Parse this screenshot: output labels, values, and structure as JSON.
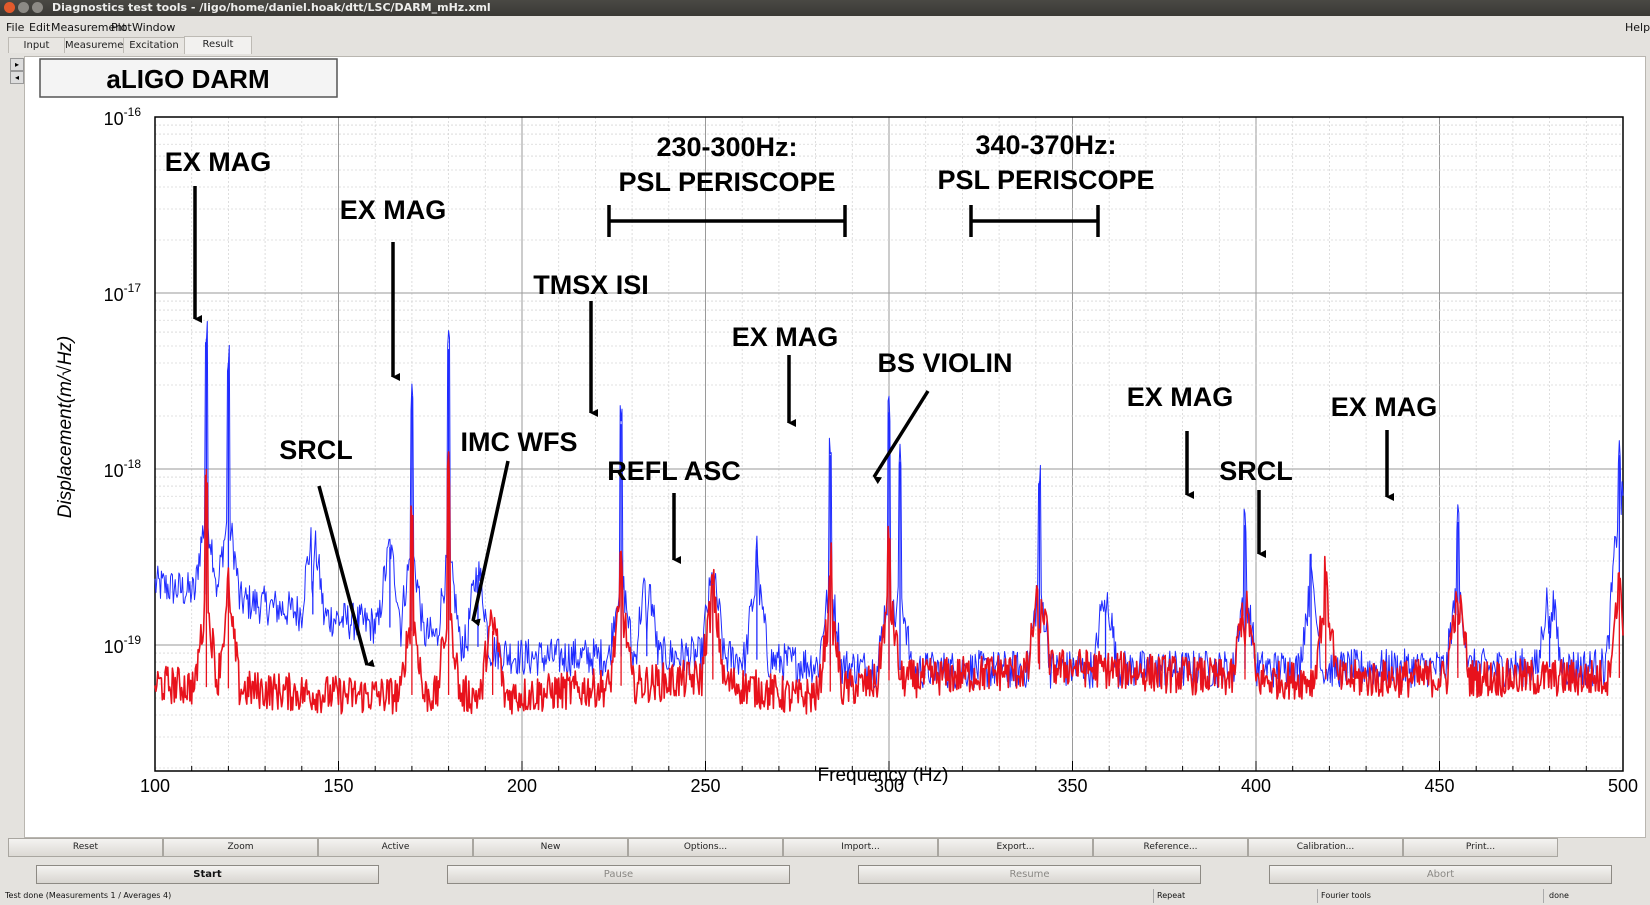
{
  "window": {
    "title": "Diagnostics test tools - /ligo/home/daniel.hoak/dtt/LSC/DARM_mHz.xml"
  },
  "menu": [
    "File",
    "Edit",
    "Measurement",
    "Plot",
    "Window"
  ],
  "help_label": "Help",
  "tabs": [
    "Input",
    "Measurement",
    "Excitation",
    "Result"
  ],
  "active_tab": "Result",
  "plot": {
    "title_box": "aLIGO DARM",
    "xlabel": "Frequency (Hz)",
    "ylabel": "Displacement(m/√Hz)",
    "x_ticks": [
      "100",
      "150",
      "200",
      "250",
      "300",
      "350",
      "400",
      "450",
      "500"
    ],
    "y_tick_mantissa": "10",
    "y_tick_exponents": [
      "-16",
      "-17",
      "-18",
      "-19"
    ],
    "annotations": {
      "ex_mag_1": "EX MAG",
      "ex_mag_2": "EX MAG",
      "srcl_1": "SRCL",
      "imc_wfs": "IMC WFS",
      "tmsx_isi": "TMSX ISI",
      "periscope_1_line1": "230-300Hz:",
      "periscope_1_line2": "PSL PERISCOPE",
      "periscope_2_line1": "340-370Hz:",
      "periscope_2_line2": "PSL PERISCOPE",
      "refl_asc": "REFL ASC",
      "ex_mag_3": "EX MAG",
      "bs_violin": "BS VIOLIN",
      "ex_mag_4": "EX MAG",
      "srcl_2": "SRCL",
      "ex_mag_5": "EX MAG"
    }
  },
  "chart_data": {
    "type": "line",
    "xlabel": "Frequency (Hz)",
    "ylabel": "Displacement(m/√Hz)",
    "xlim": [
      100,
      500
    ],
    "ylim": [
      4e-20,
      1e-16
    ],
    "yscale": "log",
    "grid": true,
    "series": [
      {
        "color": "#1f2bff",
        "peaks": [
          [
            114,
            5.5e-18
          ],
          [
            120,
            4e-18
          ],
          [
            143,
            2.3e-19
          ],
          [
            164,
            3.6e-19
          ],
          [
            170,
            2.6e-18
          ],
          [
            180,
            4.8e-18
          ],
          [
            188,
            2.5e-19
          ],
          [
            227,
            1.8e-18
          ],
          [
            234,
            1.3e-19
          ],
          [
            252,
            2.3e-19
          ],
          [
            264,
            3.5e-19
          ],
          [
            284,
            1.2e-18
          ],
          [
            300,
            2.1e-18
          ],
          [
            303,
            1.1e-18
          ],
          [
            341,
            8.5e-19
          ],
          [
            359,
            1.5e-19
          ],
          [
            397,
            4.8e-19
          ],
          [
            415,
            3.3e-19
          ],
          [
            455,
            5e-19
          ],
          [
            480,
            1.2e-19
          ],
          [
            499,
            1.2e-18
          ]
        ],
        "floor": [
          [
            100,
            2.2e-19
          ],
          [
            150,
            1.4e-19
          ],
          [
            170,
            1.2e-19
          ],
          [
            200,
            8.5e-20
          ],
          [
            250,
            8.7e-20
          ],
          [
            300,
            7.2e-20
          ],
          [
            350,
            7.3e-20
          ],
          [
            400,
            7.3e-20
          ],
          [
            450,
            7.4e-20
          ],
          [
            495,
            7.5e-20
          ],
          [
            500,
            3e-19
          ]
        ]
      },
      {
        "color": "#e8121c",
        "peaks": [
          [
            114,
            1e-18
          ],
          [
            120,
            2.2e-19
          ],
          [
            170,
            5.5e-19
          ],
          [
            180,
            1e-18
          ],
          [
            192,
            1.2e-19
          ],
          [
            227,
            3e-19
          ],
          [
            252,
            2.2e-19
          ],
          [
            284,
            3e-19
          ],
          [
            300,
            4e-19
          ],
          [
            341,
            1e-19
          ],
          [
            397,
            1.2e-19
          ],
          [
            419,
            2.5e-19
          ],
          [
            455,
            1.5e-19
          ],
          [
            499,
            2.6e-19
          ]
        ],
        "floor": [
          [
            100,
            6e-20
          ],
          [
            150,
            5.2e-20
          ],
          [
            200,
            5.2e-20
          ],
          [
            250,
            6.5e-20
          ],
          [
            275,
            5e-20
          ],
          [
            300,
            6.3e-20
          ],
          [
            350,
            7.5e-20
          ],
          [
            400,
            6.3e-20
          ],
          [
            450,
            6.5e-20
          ],
          [
            500,
            6.5e-20
          ]
        ]
      }
    ]
  },
  "buttons": [
    "Reset",
    "Zoom",
    "Active",
    "New",
    "Options...",
    "Import...",
    "Export...",
    "Reference...",
    "Calibration...",
    "Print..."
  ],
  "controls": {
    "start": "Start",
    "pause": "Pause",
    "resume": "Resume",
    "abort": "Abort"
  },
  "status": {
    "message": "Test done (Measurements 1 / Averages 4)",
    "mode": "Repeat",
    "tool": "Fourier tools",
    "state": "done"
  }
}
